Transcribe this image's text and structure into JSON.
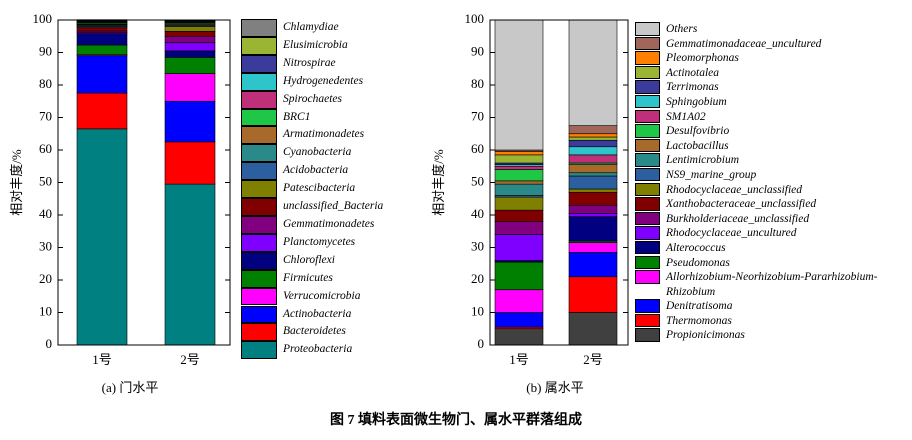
{
  "figure_caption": "图 7   填料表面微生物门、属水平群落组成",
  "chart_data": [
    {
      "type": "bar",
      "stacked": true,
      "caption": "(a) 门水平",
      "ylabel": "相对丰度/%",
      "categories": [
        "1号",
        "2号"
      ],
      "ylim": [
        0,
        100
      ],
      "yticks": [
        0,
        10,
        20,
        30,
        40,
        50,
        60,
        70,
        80,
        90,
        100
      ],
      "series": [
        {
          "name": "Proteobacteria",
          "color": "#008080",
          "values": [
            66.5,
            49.5
          ]
        },
        {
          "name": "Bacteroidetes",
          "color": "#ff0000",
          "values": [
            11,
            13
          ]
        },
        {
          "name": "Actinobacteria",
          "color": "#0000ff",
          "values": [
            11.5,
            12.5
          ]
        },
        {
          "name": "Verrucomicrobia",
          "color": "#ff00ff",
          "values": [
            0.3,
            8.5
          ]
        },
        {
          "name": "Firmicutes",
          "color": "#008000",
          "values": [
            3,
            5
          ]
        },
        {
          "name": "Chloroflexi",
          "color": "#000080",
          "values": [
            3.5,
            2
          ]
        },
        {
          "name": "Planctomycetes",
          "color": "#8000ff",
          "values": [
            0.3,
            2.5
          ]
        },
        {
          "name": "Gemmatimonadetes",
          "color": "#800080",
          "values": [
            0.5,
            2
          ]
        },
        {
          "name": "unclassified_Bacteria",
          "color": "#800000",
          "values": [
            1,
            1.5
          ]
        },
        {
          "name": "Patescibacteria",
          "color": "#808000",
          "values": [
            0.3,
            1.5
          ]
        },
        {
          "name": "Acidobacteria",
          "color": "#2c5fa0",
          "values": [
            0.3,
            0.3
          ]
        },
        {
          "name": "Cyanobacteria",
          "color": "#2a8a8a",
          "values": [
            0.3,
            0.3
          ]
        },
        {
          "name": "Armatimonadetes",
          "color": "#a86a2a",
          "values": [
            0.2,
            0.3
          ]
        },
        {
          "name": "BRC1",
          "color": "#1ec846",
          "values": [
            0.3,
            0.3
          ]
        },
        {
          "name": "Spirochaetes",
          "color": "#c0307a",
          "values": [
            0.2,
            0.2
          ]
        },
        {
          "name": "Hydrogenedentes",
          "color": "#2ec4cc",
          "values": [
            0.2,
            0.2
          ]
        },
        {
          "name": "Nitrospirae",
          "color": "#3b3b9c",
          "values": [
            0.2,
            0.2
          ]
        },
        {
          "name": "Elusimicrobia",
          "color": "#9ab434",
          "values": [
            0.2,
            0.1
          ]
        },
        {
          "name": "Chlamydiae",
          "color": "#808080",
          "values": [
            0.3,
            0.1
          ]
        }
      ]
    },
    {
      "type": "bar",
      "stacked": true,
      "caption": "(b) 属水平",
      "ylabel": "相对丰度/%",
      "categories": [
        "1号",
        "2号"
      ],
      "ylim": [
        0,
        100
      ],
      "yticks": [
        0,
        10,
        20,
        30,
        40,
        50,
        60,
        70,
        80,
        90,
        100
      ],
      "series": [
        {
          "name": "Propionicimonas",
          "color": "#404040",
          "values": [
            5,
            10
          ]
        },
        {
          "name": "Thermomonas",
          "color": "#ff0000",
          "values": [
            0.5,
            11
          ]
        },
        {
          "name": "Denitratisoma",
          "color": "#0000ff",
          "values": [
            4.5,
            7.5
          ]
        },
        {
          "name": "Allorhizobium-Neorhizobium-Pararhizobium-Rhizobium",
          "color": "#ff00ff",
          "values": [
            7,
            3
          ]
        },
        {
          "name": "Pseudomonas",
          "color": "#008000",
          "values": [
            8.5,
            0.5
          ]
        },
        {
          "name": "Alterococcus",
          "color": "#000080",
          "values": [
            0.5,
            7.5
          ]
        },
        {
          "name": "Rhodocyclaceae_uncultured",
          "color": "#8000ff",
          "values": [
            8,
            1
          ]
        },
        {
          "name": "Burkholderiaceae_unclassified",
          "color": "#800080",
          "values": [
            4,
            2.5
          ]
        },
        {
          "name": "Xanthobacteraceae_unclassified",
          "color": "#800000",
          "values": [
            3.5,
            4
          ]
        },
        {
          "name": "Rhodocyclaceae_unclassified",
          "color": "#808000",
          "values": [
            4,
            1
          ]
        },
        {
          "name": "NS9_marine_group",
          "color": "#2c5fa0",
          "values": [
            0.5,
            4
          ]
        },
        {
          "name": "Lentimicrobium",
          "color": "#2a8a8a",
          "values": [
            3.5,
            1
          ]
        },
        {
          "name": "Lactobacillus",
          "color": "#a86a2a",
          "values": [
            1,
            2.5
          ]
        },
        {
          "name": "Desulfovibrio",
          "color": "#1ec846",
          "values": [
            3.5,
            0.5
          ]
        },
        {
          "name": "SM1A02",
          "color": "#c0307a",
          "values": [
            1,
            2.5
          ]
        },
        {
          "name": "Sphingobium",
          "color": "#2ec4cc",
          "values": [
            0.5,
            2.5
          ]
        },
        {
          "name": "Terrimonas",
          "color": "#3b3b9c",
          "values": [
            0.5,
            2
          ]
        },
        {
          "name": "Actinotalea",
          "color": "#9ab434",
          "values": [
            2.5,
            1
          ]
        },
        {
          "name": "Pleomorphonas",
          "color": "#ff8000",
          "values": [
            1,
            1
          ]
        },
        {
          "name": "Gemmatimonadaceae_uncultured",
          "color": "#a0665a",
          "values": [
            0.5,
            2.5
          ]
        },
        {
          "name": "Others",
          "color": "#c8c8c8",
          "values": [
            40,
            32.5
          ]
        }
      ]
    }
  ]
}
